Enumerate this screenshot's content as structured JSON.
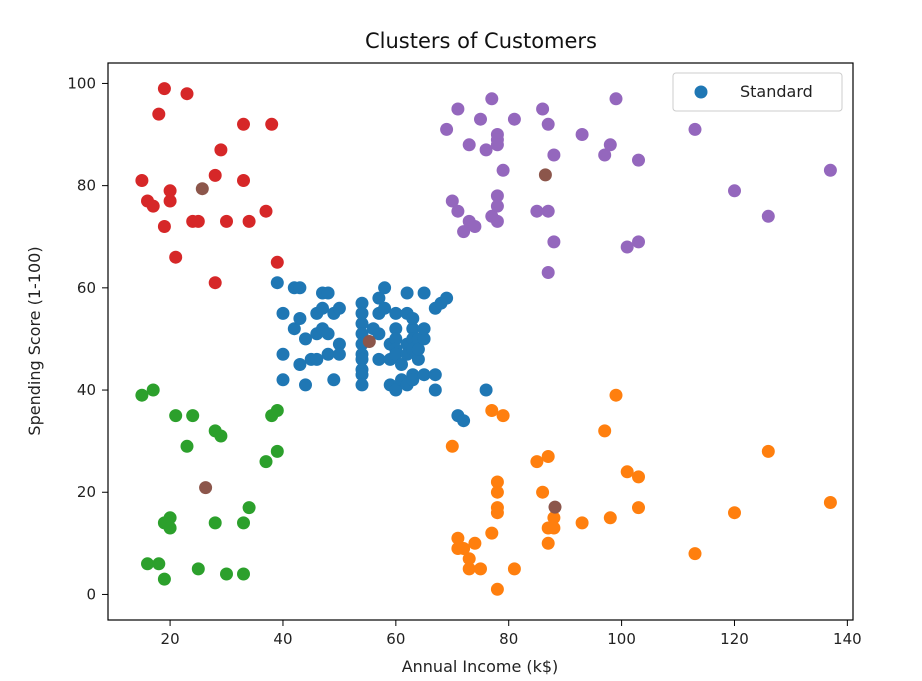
{
  "chart_data": {
    "type": "scatter",
    "title": "Clusters of Customers",
    "xlabel": "Annual Income (k$)",
    "ylabel": "Spending Score (1-100)",
    "xlim": [
      9,
      141
    ],
    "ylim": [
      -5,
      104
    ],
    "xticks": [
      20,
      40,
      60,
      80,
      100,
      120,
      140
    ],
    "yticks": [
      0,
      20,
      40,
      60,
      80,
      100
    ],
    "grid": false,
    "legend": {
      "placement": "top-right",
      "entries": [
        "Standard"
      ]
    },
    "colors": {
      "standard": "#1f77b4",
      "target": "#ff7f0e",
      "careful": "#2ca02c",
      "careless": "#d62728",
      "sensible": "#9467bd",
      "centroid": "#8c564b"
    },
    "series": [
      {
        "color_key": "standard",
        "points": [
          [
            39,
            61
          ],
          [
            40,
            55
          ],
          [
            40,
            47
          ],
          [
            40,
            42
          ],
          [
            42,
            52
          ],
          [
            42,
            60
          ],
          [
            43,
            54
          ],
          [
            43,
            60
          ],
          [
            43,
            45
          ],
          [
            44,
            50
          ],
          [
            44,
            41
          ],
          [
            45,
            46
          ],
          [
            46,
            51
          ],
          [
            46,
            55
          ],
          [
            46,
            46
          ],
          [
            47,
            56
          ],
          [
            47,
            52
          ],
          [
            47,
            59
          ],
          [
            48,
            59
          ],
          [
            48,
            51
          ],
          [
            48,
            47
          ],
          [
            49,
            55
          ],
          [
            49,
            42
          ],
          [
            50,
            49
          ],
          [
            50,
            56
          ],
          [
            50,
            47
          ],
          [
            54,
            53
          ],
          [
            54,
            57
          ],
          [
            54,
            55
          ],
          [
            54,
            51
          ],
          [
            54,
            49
          ],
          [
            54,
            47
          ],
          [
            54,
            46
          ],
          [
            54,
            44
          ],
          [
            54,
            43
          ],
          [
            54,
            41
          ],
          [
            56,
            52
          ],
          [
            57,
            58
          ],
          [
            57,
            55
          ],
          [
            57,
            46
          ],
          [
            57,
            51
          ],
          [
            58,
            56
          ],
          [
            58,
            60
          ],
          [
            59,
            49
          ],
          [
            59,
            46
          ],
          [
            59,
            41
          ],
          [
            60,
            55
          ],
          [
            60,
            52
          ],
          [
            60,
            50
          ],
          [
            60,
            48
          ],
          [
            60,
            47
          ],
          [
            60,
            40
          ],
          [
            61,
            45
          ],
          [
            61,
            42
          ],
          [
            62,
            59
          ],
          [
            62,
            55
          ],
          [
            62,
            49
          ],
          [
            62,
            47
          ],
          [
            62,
            41
          ],
          [
            63,
            52
          ],
          [
            63,
            50
          ],
          [
            63,
            54
          ],
          [
            63,
            48
          ],
          [
            63,
            43
          ],
          [
            63,
            42
          ],
          [
            64,
            50
          ],
          [
            64,
            46
          ],
          [
            64,
            48
          ],
          [
            65,
            50
          ],
          [
            65,
            52
          ],
          [
            65,
            59
          ],
          [
            65,
            43
          ],
          [
            67,
            56
          ],
          [
            67,
            43
          ],
          [
            67,
            40
          ],
          [
            68,
            57
          ],
          [
            69,
            58
          ],
          [
            71,
            35
          ],
          [
            72,
            34
          ],
          [
            76,
            40
          ]
        ]
      },
      {
        "color_key": "target",
        "points": [
          [
            70,
            29
          ],
          [
            71,
            11
          ],
          [
            71,
            9
          ],
          [
            72,
            9
          ],
          [
            73,
            5
          ],
          [
            73,
            7
          ],
          [
            74,
            10
          ],
          [
            75,
            5
          ],
          [
            77,
            12
          ],
          [
            77,
            36
          ],
          [
            78,
            22
          ],
          [
            78,
            20
          ],
          [
            78,
            17
          ],
          [
            78,
            16
          ],
          [
            78,
            1
          ],
          [
            79,
            35
          ],
          [
            81,
            5
          ],
          [
            85,
            26
          ],
          [
            86,
            20
          ],
          [
            87,
            27
          ],
          [
            87,
            13
          ],
          [
            87,
            10
          ],
          [
            88,
            15
          ],
          [
            88,
            13
          ],
          [
            93,
            14
          ],
          [
            97,
            32
          ],
          [
            98,
            15
          ],
          [
            99,
            39
          ],
          [
            101,
            24
          ],
          [
            103,
            17
          ],
          [
            103,
            23
          ],
          [
            113,
            8
          ],
          [
            120,
            16
          ],
          [
            126,
            28
          ],
          [
            137,
            18
          ]
        ]
      },
      {
        "color_key": "careful",
        "points": [
          [
            15,
            39
          ],
          [
            17,
            40
          ],
          [
            16,
            6
          ],
          [
            18,
            6
          ],
          [
            19,
            3
          ],
          [
            19,
            14
          ],
          [
            20,
            15
          ],
          [
            20,
            13
          ],
          [
            21,
            35
          ],
          [
            23,
            29
          ],
          [
            24,
            35
          ],
          [
            25,
            5
          ],
          [
            28,
            14
          ],
          [
            28,
            32
          ],
          [
            29,
            31
          ],
          [
            30,
            4
          ],
          [
            33,
            4
          ],
          [
            33,
            14
          ],
          [
            34,
            17
          ],
          [
            37,
            26
          ],
          [
            38,
            35
          ],
          [
            39,
            36
          ],
          [
            39,
            28
          ]
        ]
      },
      {
        "color_key": "careless",
        "points": [
          [
            15,
            81
          ],
          [
            16,
            77
          ],
          [
            17,
            76
          ],
          [
            18,
            94
          ],
          [
            19,
            99
          ],
          [
            19,
            72
          ],
          [
            20,
            77
          ],
          [
            20,
            79
          ],
          [
            21,
            66
          ],
          [
            23,
            98
          ],
          [
            24,
            73
          ],
          [
            25,
            73
          ],
          [
            28,
            82
          ],
          [
            28,
            61
          ],
          [
            29,
            87
          ],
          [
            30,
            73
          ],
          [
            33,
            92
          ],
          [
            33,
            81
          ],
          [
            34,
            73
          ],
          [
            37,
            75
          ],
          [
            38,
            92
          ],
          [
            39,
            65
          ]
        ]
      },
      {
        "color_key": "sensible",
        "points": [
          [
            69,
            91
          ],
          [
            70,
            77
          ],
          [
            71,
            95
          ],
          [
            71,
            75
          ],
          [
            72,
            71
          ],
          [
            73,
            88
          ],
          [
            73,
            73
          ],
          [
            74,
            72
          ],
          [
            75,
            93
          ],
          [
            76,
            87
          ],
          [
            77,
            97
          ],
          [
            77,
            74
          ],
          [
            78,
            90
          ],
          [
            78,
            89
          ],
          [
            78,
            88
          ],
          [
            78,
            78
          ],
          [
            78,
            76
          ],
          [
            78,
            73
          ],
          [
            79,
            83
          ],
          [
            81,
            93
          ],
          [
            85,
            75
          ],
          [
            86,
            95
          ],
          [
            87,
            92
          ],
          [
            87,
            75
          ],
          [
            87,
            63
          ],
          [
            88,
            86
          ],
          [
            88,
            69
          ],
          [
            93,
            90
          ],
          [
            97,
            86
          ],
          [
            98,
            88
          ],
          [
            99,
            97
          ],
          [
            101,
            68
          ],
          [
            103,
            85
          ],
          [
            103,
            69
          ],
          [
            113,
            91
          ],
          [
            120,
            79
          ],
          [
            126,
            74
          ],
          [
            137,
            83
          ]
        ]
      },
      {
        "color_key": "centroid",
        "points": [
          [
            55.3,
            49.5
          ],
          [
            86.5,
            82.1
          ],
          [
            25.7,
            79.4
          ],
          [
            88.2,
            17.1
          ],
          [
            26.3,
            20.9
          ]
        ]
      }
    ]
  }
}
